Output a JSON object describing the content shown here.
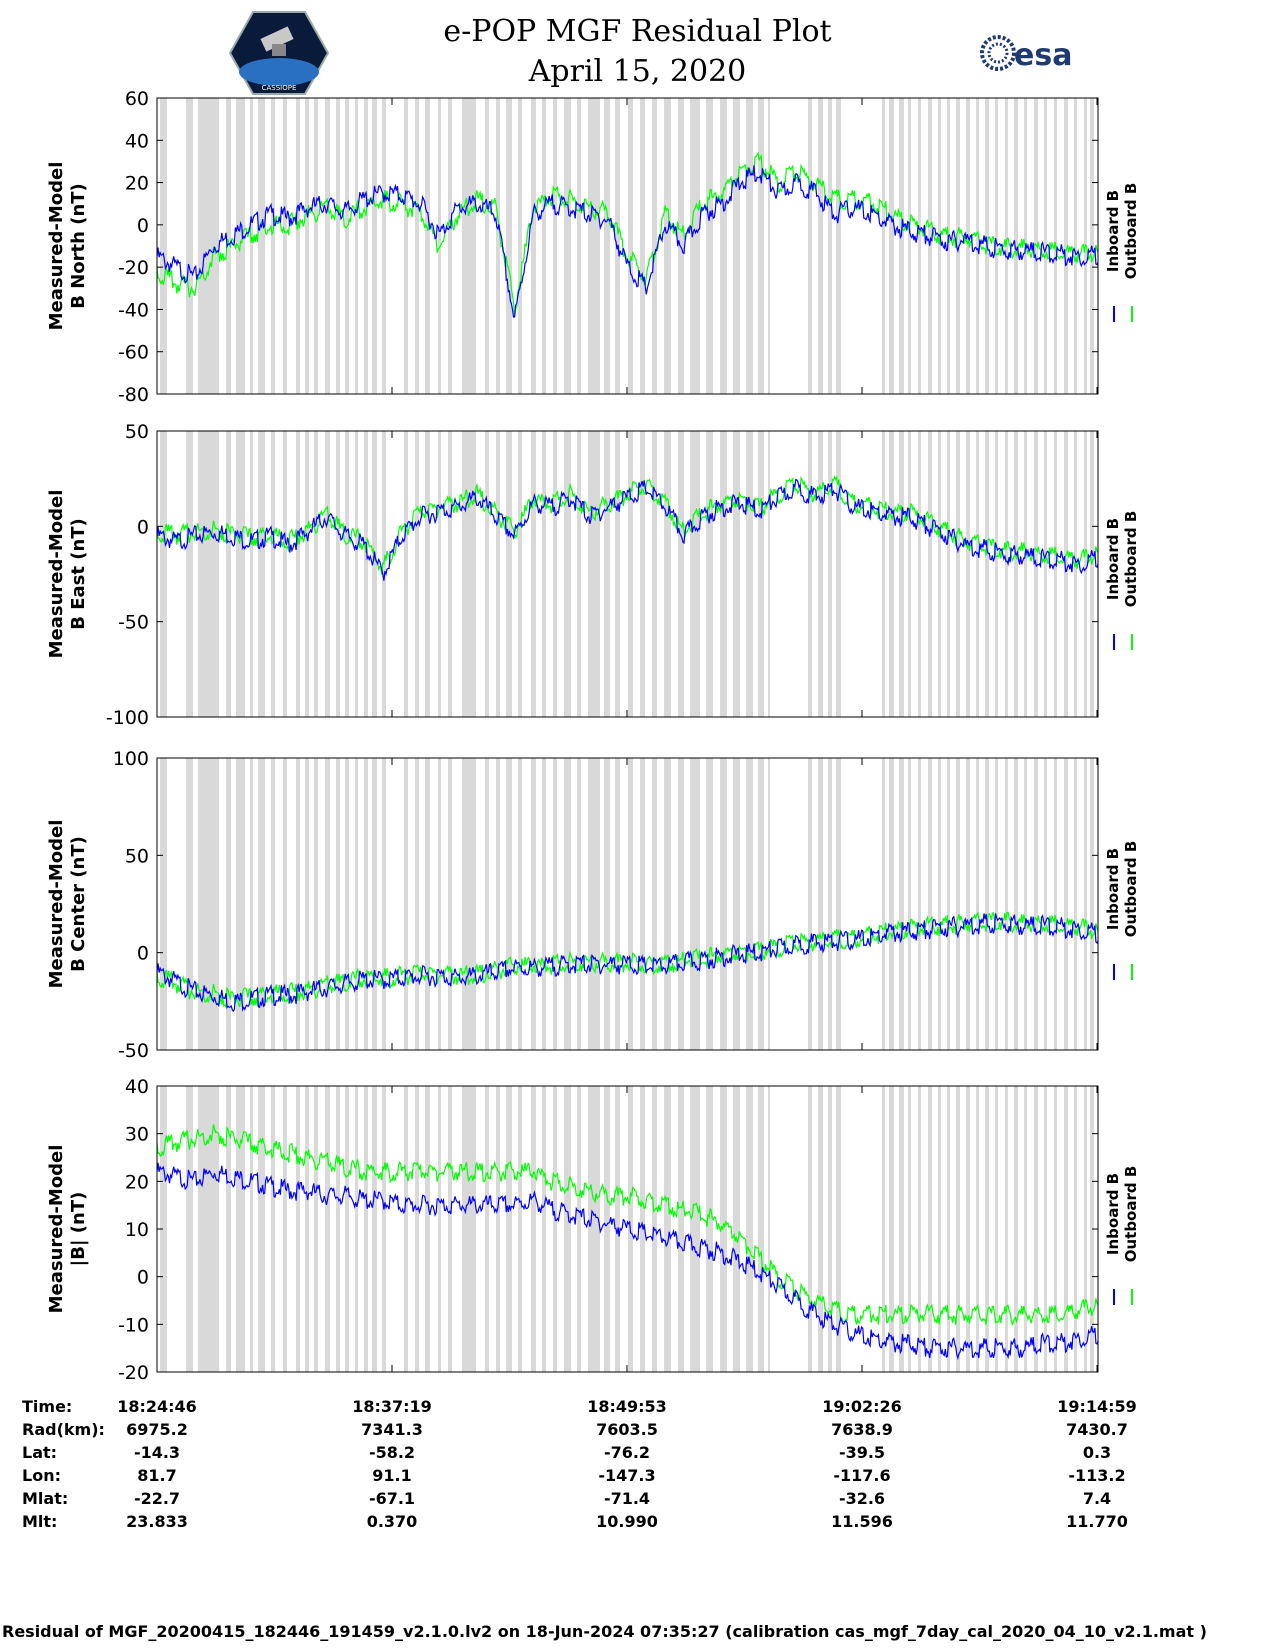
{
  "header": {
    "title": "e-POP MGF Residual Plot",
    "date": "April 15, 2020",
    "logo_left": "CASSIOPE",
    "logo_right": "esa"
  },
  "colors": {
    "inboard": "#0000ff",
    "outboard": "#00ff00",
    "gap": "#d9d9d9"
  },
  "chart_data": [
    {
      "type": "line",
      "ylabel": [
        "Measured-Model",
        "B North (nT)"
      ],
      "ylim": [
        -80,
        60
      ],
      "yticks": [
        -80,
        -60,
        -40,
        -20,
        0,
        20,
        40,
        60
      ],
      "legend": [
        "Inboard B",
        "Outboard B"
      ],
      "legend_placement": "right",
      "series": [
        {
          "name": "Inboard B",
          "x": [
            0,
            0.02,
            0.04,
            0.06,
            0.08,
            0.1,
            0.12,
            0.14,
            0.16,
            0.18,
            0.2,
            0.22,
            0.24,
            0.26,
            0.28,
            0.3,
            0.32,
            0.34,
            0.36,
            0.38,
            0.4,
            0.42,
            0.44,
            0.46,
            0.48,
            0.5,
            0.52,
            0.54,
            0.56,
            0.58,
            0.6,
            0.62,
            0.64,
            0.66,
            0.68,
            0.7,
            0.72,
            0.74,
            0.76,
            0.78,
            0.8,
            0.82,
            0.84,
            0.86,
            0.88,
            0.9,
            0.92,
            0.94,
            0.96,
            0.98,
            1.0
          ],
          "values": [
            -15,
            -20,
            -25,
            -10,
            -5,
            0,
            5,
            3,
            8,
            10,
            6,
            12,
            15,
            14,
            10,
            -5,
            8,
            10,
            5,
            -45,
            5,
            10,
            8,
            5,
            2,
            -20,
            -30,
            0,
            -10,
            5,
            10,
            20,
            25,
            15,
            20,
            15,
            5,
            8,
            5,
            0,
            -3,
            -5,
            -8,
            -7,
            -10,
            -12,
            -12,
            -13,
            -14,
            -15,
            -14
          ]
        },
        {
          "name": "Outboard B",
          "x": [
            0,
            0.02,
            0.04,
            0.06,
            0.08,
            0.1,
            0.12,
            0.14,
            0.16,
            0.18,
            0.2,
            0.22,
            0.24,
            0.26,
            0.28,
            0.3,
            0.32,
            0.34,
            0.36,
            0.38,
            0.4,
            0.42,
            0.44,
            0.46,
            0.48,
            0.5,
            0.52,
            0.54,
            0.56,
            0.58,
            0.6,
            0.62,
            0.64,
            0.66,
            0.68,
            0.7,
            0.72,
            0.74,
            0.76,
            0.78,
            0.8,
            0.82,
            0.84,
            0.86,
            0.88,
            0.9,
            0.92,
            0.94,
            0.96,
            0.98,
            1.0
          ],
          "values": [
            -22,
            -28,
            -30,
            -15,
            -10,
            -5,
            0,
            0,
            5,
            8,
            3,
            8,
            12,
            10,
            5,
            -10,
            5,
            12,
            8,
            -40,
            8,
            14,
            12,
            8,
            6,
            -15,
            -25,
            5,
            -5,
            10,
            15,
            25,
            30,
            20,
            25,
            20,
            12,
            12,
            10,
            5,
            0,
            -3,
            -6,
            -6,
            -9,
            -11,
            -11,
            -12,
            -13,
            -14,
            -13
          ]
        }
      ]
    },
    {
      "type": "line",
      "ylabel": [
        "Measured-Model",
        "B East (nT)"
      ],
      "ylim": [
        -100,
        50
      ],
      "yticks": [
        -100,
        -50,
        0,
        50
      ],
      "legend": [
        "Inboard B",
        "Outboard B"
      ],
      "legend_placement": "right",
      "series": [
        {
          "name": "Inboard B",
          "x": [
            0,
            0.02,
            0.04,
            0.06,
            0.08,
            0.1,
            0.12,
            0.14,
            0.16,
            0.18,
            0.2,
            0.22,
            0.24,
            0.26,
            0.28,
            0.3,
            0.32,
            0.34,
            0.36,
            0.38,
            0.4,
            0.42,
            0.44,
            0.46,
            0.48,
            0.5,
            0.52,
            0.54,
            0.56,
            0.58,
            0.6,
            0.62,
            0.64,
            0.66,
            0.68,
            0.7,
            0.72,
            0.74,
            0.76,
            0.78,
            0.8,
            0.82,
            0.84,
            0.86,
            0.88,
            0.9,
            0.92,
            0.94,
            0.96,
            0.98,
            1.0
          ],
          "values": [
            -5,
            -8,
            -5,
            -3,
            -5,
            -8,
            -5,
            -10,
            -3,
            5,
            -5,
            -10,
            -25,
            -5,
            5,
            8,
            10,
            15,
            5,
            -5,
            12,
            10,
            15,
            5,
            10,
            15,
            20,
            10,
            -5,
            5,
            10,
            12,
            8,
            15,
            20,
            15,
            20,
            10,
            8,
            5,
            5,
            0,
            -5,
            -10,
            -12,
            -15,
            -15,
            -17,
            -18,
            -20,
            -16
          ]
        },
        {
          "name": "Outboard B",
          "x": [
            0,
            0.02,
            0.04,
            0.06,
            0.08,
            0.1,
            0.12,
            0.14,
            0.16,
            0.18,
            0.2,
            0.22,
            0.24,
            0.26,
            0.28,
            0.3,
            0.32,
            0.34,
            0.36,
            0.38,
            0.4,
            0.42,
            0.44,
            0.46,
            0.48,
            0.5,
            0.52,
            0.54,
            0.56,
            0.58,
            0.6,
            0.62,
            0.64,
            0.66,
            0.68,
            0.7,
            0.72,
            0.74,
            0.76,
            0.78,
            0.8,
            0.82,
            0.84,
            0.86,
            0.88,
            0.9,
            0.92,
            0.94,
            0.96,
            0.98,
            1.0
          ],
          "values": [
            -3,
            -5,
            -3,
            -2,
            -4,
            -6,
            -4,
            -8,
            -2,
            6,
            -4,
            -8,
            -22,
            -3,
            7,
            10,
            12,
            17,
            7,
            -3,
            14,
            12,
            17,
            7,
            12,
            17,
            22,
            12,
            -3,
            7,
            12,
            14,
            10,
            17,
            22,
            17,
            22,
            12,
            10,
            7,
            7,
            2,
            -3,
            -8,
            -10,
            -13,
            -13,
            -15,
            -16,
            -18,
            -14
          ]
        }
      ]
    },
    {
      "type": "line",
      "ylabel": [
        "Measured-Model",
        "B Center (nT)"
      ],
      "ylim": [
        -50,
        100
      ],
      "yticks": [
        -50,
        0,
        50,
        100
      ],
      "legend": [
        "Inboard B",
        "Outboard B"
      ],
      "legend_placement": "right",
      "series": [
        {
          "name": "Inboard B",
          "x": [
            0,
            0.02,
            0.04,
            0.06,
            0.08,
            0.1,
            0.12,
            0.14,
            0.16,
            0.18,
            0.2,
            0.22,
            0.24,
            0.26,
            0.28,
            0.3,
            0.32,
            0.34,
            0.36,
            0.38,
            0.4,
            0.42,
            0.44,
            0.46,
            0.48,
            0.5,
            0.52,
            0.54,
            0.56,
            0.58,
            0.6,
            0.62,
            0.64,
            0.66,
            0.68,
            0.7,
            0.72,
            0.74,
            0.76,
            0.78,
            0.8,
            0.82,
            0.84,
            0.86,
            0.88,
            0.9,
            0.92,
            0.94,
            0.96,
            0.98,
            1.0
          ],
          "values": [
            -10,
            -15,
            -20,
            -22,
            -25,
            -24,
            -22,
            -22,
            -20,
            -18,
            -16,
            -14,
            -14,
            -13,
            -12,
            -12,
            -13,
            -12,
            -10,
            -8,
            -8,
            -7,
            -6,
            -6,
            -6,
            -6,
            -7,
            -7,
            -5,
            -4,
            -2,
            -1,
            0,
            2,
            4,
            5,
            6,
            6,
            8,
            10,
            11,
            12,
            13,
            14,
            15,
            15,
            14,
            14,
            13,
            12,
            10
          ]
        },
        {
          "name": "Outboard B",
          "x": [
            0,
            0.02,
            0.04,
            0.06,
            0.08,
            0.1,
            0.12,
            0.14,
            0.16,
            0.18,
            0.2,
            0.22,
            0.24,
            0.26,
            0.28,
            0.3,
            0.32,
            0.34,
            0.36,
            0.38,
            0.4,
            0.42,
            0.44,
            0.46,
            0.48,
            0.5,
            0.52,
            0.54,
            0.56,
            0.58,
            0.6,
            0.62,
            0.64,
            0.66,
            0.68,
            0.7,
            0.72,
            0.74,
            0.76,
            0.78,
            0.8,
            0.82,
            0.84,
            0.86,
            0.88,
            0.9,
            0.92,
            0.94,
            0.96,
            0.98,
            1.0
          ],
          "values": [
            -12,
            -16,
            -20,
            -21,
            -24,
            -23,
            -21,
            -21,
            -19,
            -17,
            -15,
            -13,
            -13,
            -12,
            -11,
            -11,
            -12,
            -11,
            -9,
            -7,
            -7,
            -6,
            -5,
            -5,
            -5,
            -5,
            -6,
            -6,
            -4,
            -3,
            -1,
            0,
            1,
            3,
            5,
            6,
            7,
            7,
            9,
            11,
            12,
            13,
            14,
            15,
            16,
            16,
            15,
            15,
            14,
            13,
            11
          ]
        }
      ]
    },
    {
      "type": "line",
      "ylabel": [
        "Measured-Model",
        "|B| (nT)"
      ],
      "ylim": [
        -20,
        40
      ],
      "yticks": [
        -20,
        -10,
        0,
        10,
        20,
        30,
        40
      ],
      "legend": [
        "Inboard B",
        "Outboard B"
      ],
      "legend_placement": "right",
      "series": [
        {
          "name": "Inboard B",
          "x": [
            0,
            0.02,
            0.04,
            0.06,
            0.08,
            0.1,
            0.12,
            0.14,
            0.16,
            0.18,
            0.2,
            0.22,
            0.24,
            0.26,
            0.28,
            0.3,
            0.32,
            0.34,
            0.36,
            0.38,
            0.4,
            0.42,
            0.44,
            0.46,
            0.48,
            0.5,
            0.52,
            0.54,
            0.56,
            0.58,
            0.6,
            0.62,
            0.64,
            0.66,
            0.68,
            0.7,
            0.72,
            0.74,
            0.76,
            0.78,
            0.8,
            0.82,
            0.84,
            0.86,
            0.88,
            0.9,
            0.92,
            0.94,
            0.96,
            0.98,
            1.0
          ],
          "values": [
            22,
            21,
            20,
            22,
            21,
            20,
            19,
            18,
            18,
            17,
            17,
            16,
            16,
            15,
            15,
            15,
            15,
            15,
            15,
            15,
            16,
            14,
            13,
            12,
            11,
            10,
            9,
            8,
            7,
            6,
            5,
            3,
            1,
            -2,
            -5,
            -8,
            -10,
            -12,
            -13,
            -14,
            -14,
            -15,
            -15,
            -15,
            -15,
            -15,
            -15,
            -14,
            -14,
            -13,
            -12
          ]
        },
        {
          "name": "Outboard B",
          "x": [
            0,
            0.02,
            0.04,
            0.06,
            0.08,
            0.1,
            0.12,
            0.14,
            0.16,
            0.18,
            0.2,
            0.22,
            0.24,
            0.26,
            0.28,
            0.3,
            0.32,
            0.34,
            0.36,
            0.38,
            0.4,
            0.42,
            0.44,
            0.46,
            0.48,
            0.5,
            0.52,
            0.54,
            0.56,
            0.58,
            0.6,
            0.62,
            0.64,
            0.66,
            0.68,
            0.7,
            0.72,
            0.74,
            0.76,
            0.78,
            0.8,
            0.82,
            0.84,
            0.86,
            0.88,
            0.9,
            0.92,
            0.94,
            0.96,
            0.98,
            1.0
          ],
          "values": [
            27,
            28,
            29,
            30,
            29,
            28,
            27,
            26,
            25,
            24,
            23,
            22,
            22,
            22,
            22,
            22,
            22,
            22,
            22,
            22,
            22,
            20,
            19,
            18,
            17,
            17,
            16,
            15,
            14,
            13,
            11,
            8,
            4,
            0,
            -3,
            -5,
            -7,
            -8,
            -8,
            -8,
            -8,
            -8,
            -8,
            -8,
            -8,
            -8,
            -8,
            -8,
            -8,
            -7,
            -6
          ]
        }
      ]
    }
  ],
  "ephemeris": {
    "row_labels": [
      "Time:",
      "Rad(km):",
      "Lat:",
      "Lon:",
      "Mlat:",
      "Mlt:"
    ],
    "columns": [
      [
        "18:24:46",
        "6975.2",
        "-14.3",
        "81.7",
        "-22.7",
        "23.833"
      ],
      [
        "18:37:19",
        "7341.3",
        "-58.2",
        "91.1",
        "-67.1",
        "0.370"
      ],
      [
        "18:49:53",
        "7603.5",
        "-76.2",
        "-147.3",
        "-71.4",
        "10.990"
      ],
      [
        "19:02:26",
        "7638.9",
        "-39.5",
        "-117.6",
        "-32.6",
        "11.596"
      ],
      [
        "19:14:59",
        "7430.7",
        "0.3",
        "-113.2",
        "7.4",
        "11.770"
      ]
    ]
  },
  "footer": "Residual of MGF_20200415_182446_191459_v2.1.0.lv2 on 18-Jun-2024 07:35:27 (calibration cas_mgf_7day_cal_2020_04_10_v2.1.mat )"
}
